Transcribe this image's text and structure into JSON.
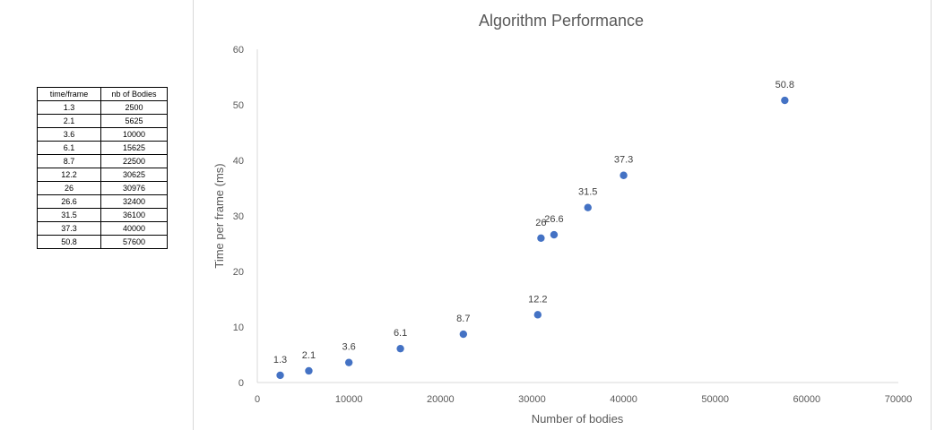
{
  "table": {
    "headers": [
      "time/frame",
      "nb of Bodies"
    ],
    "rows": [
      [
        "1.3",
        "2500"
      ],
      [
        "2.1",
        "5625"
      ],
      [
        "3.6",
        "10000"
      ],
      [
        "6.1",
        "15625"
      ],
      [
        "8.7",
        "22500"
      ],
      [
        "12.2",
        "30625"
      ],
      [
        "26",
        "30976"
      ],
      [
        "26.6",
        "32400"
      ],
      [
        "31.5",
        "36100"
      ],
      [
        "37.3",
        "40000"
      ],
      [
        "50.8",
        "57600"
      ]
    ]
  },
  "chart_data": {
    "type": "scatter",
    "title": "Algorithm Performance",
    "xlabel": "Number of bodies",
    "ylabel": "Time per frame (ms)",
    "xlim": [
      0,
      70000
    ],
    "ylim": [
      0,
      60
    ],
    "x_ticks": [
      0,
      10000,
      20000,
      30000,
      40000,
      50000,
      60000,
      70000
    ],
    "y_ticks": [
      0,
      10,
      20,
      30,
      40,
      50,
      60
    ],
    "grid": false,
    "legend": "none",
    "marker_color": "#4472c4",
    "series": [
      {
        "x": [
          2500,
          5625,
          10000,
          15625,
          22500,
          30625,
          30976,
          32400,
          36100,
          40000,
          57600
        ],
        "y": [
          1.3,
          2.1,
          3.6,
          6.1,
          8.7,
          12.2,
          26,
          26.6,
          31.5,
          37.3,
          50.8
        ],
        "labels": [
          "1.3",
          "2.1",
          "3.6",
          "6.1",
          "8.7",
          "12.2",
          "26",
          "26.6",
          "31.5",
          "37.3",
          "50.8"
        ]
      }
    ]
  }
}
